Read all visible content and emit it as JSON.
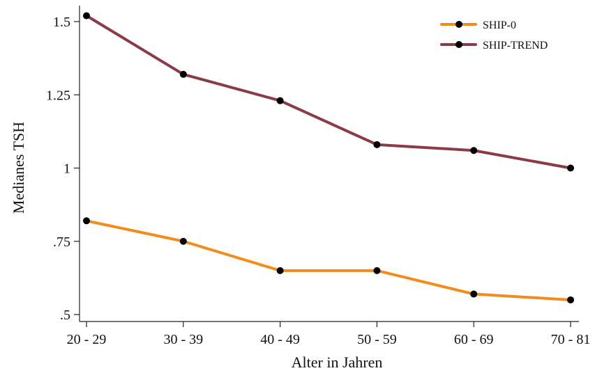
{
  "chart_data": {
    "type": "line",
    "xlabel": "Alter in Jahren",
    "ylabel": "Medianes TSH",
    "categories": [
      "20 - 29",
      "30 - 39",
      "40 - 49",
      "50 - 59",
      "60 - 69",
      "70 - 81"
    ],
    "ylim": [
      0.5,
      1.5
    ],
    "yticks": [
      {
        "value": 0.5,
        "label": ".5"
      },
      {
        "value": 0.75,
        "label": ".75"
      },
      {
        "value": 1.0,
        "label": "1"
      },
      {
        "value": 1.25,
        "label": "1.25"
      },
      {
        "value": 1.5,
        "label": "1.5"
      }
    ],
    "grid": false,
    "legend_position": "top-right",
    "series": [
      {
        "name": "SHIP-0",
        "color": "#F28C1C",
        "values": [
          0.82,
          0.75,
          0.65,
          0.65,
          0.57,
          0.55
        ]
      },
      {
        "name": "SHIP-TREND",
        "color": "#8B3A46",
        "values": [
          1.52,
          1.32,
          1.23,
          1.08,
          1.06,
          1.0
        ]
      }
    ]
  }
}
